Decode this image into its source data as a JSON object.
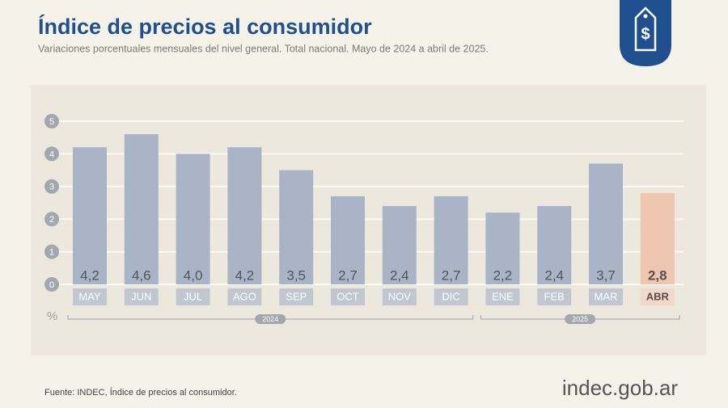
{
  "chart_data": {
    "type": "bar",
    "title": "Índice de precios al consumidor",
    "subtitle": "Variaciones porcentuales mensuales del nivel general. Total nacional. Mayo de 2024 a abril de 2025.",
    "categories": [
      "MAY",
      "JUN",
      "JUL",
      "AGO",
      "SEP",
      "OCT",
      "NOV",
      "DIC",
      "ENE",
      "FEB",
      "MAR",
      "ABR"
    ],
    "years": [
      "2024",
      "2024",
      "2024",
      "2024",
      "2024",
      "2024",
      "2024",
      "2024",
      "2025",
      "2025",
      "2025",
      "2025"
    ],
    "values": [
      4.2,
      4.6,
      4.0,
      4.2,
      3.5,
      2.7,
      2.4,
      2.7,
      2.2,
      2.4,
      3.7,
      2.8
    ],
    "value_labels": [
      "4,2",
      "4,6",
      "4,0",
      "4,2",
      "3,5",
      "2,7",
      "2,4",
      "2,7",
      "2,2",
      "2,4",
      "3,7",
      "2,8"
    ],
    "colors": [
      "#a9b4c6",
      "#a9b4c6",
      "#a9b4c6",
      "#a9b4c6",
      "#a9b4c6",
      "#a9b4c6",
      "#a9b4c6",
      "#a9b4c6",
      "#a9b4c6",
      "#a9b4c6",
      "#a9b4c6",
      "#eec5ae"
    ],
    "ylim": [
      0,
      5
    ],
    "yticks": [
      0,
      1,
      2,
      3,
      4,
      5
    ],
    "grid": true,
    "unit": "%",
    "source": "Fuente: INDEC, Índice de precios al consumidor.",
    "logo": "indec.gob.ar"
  }
}
